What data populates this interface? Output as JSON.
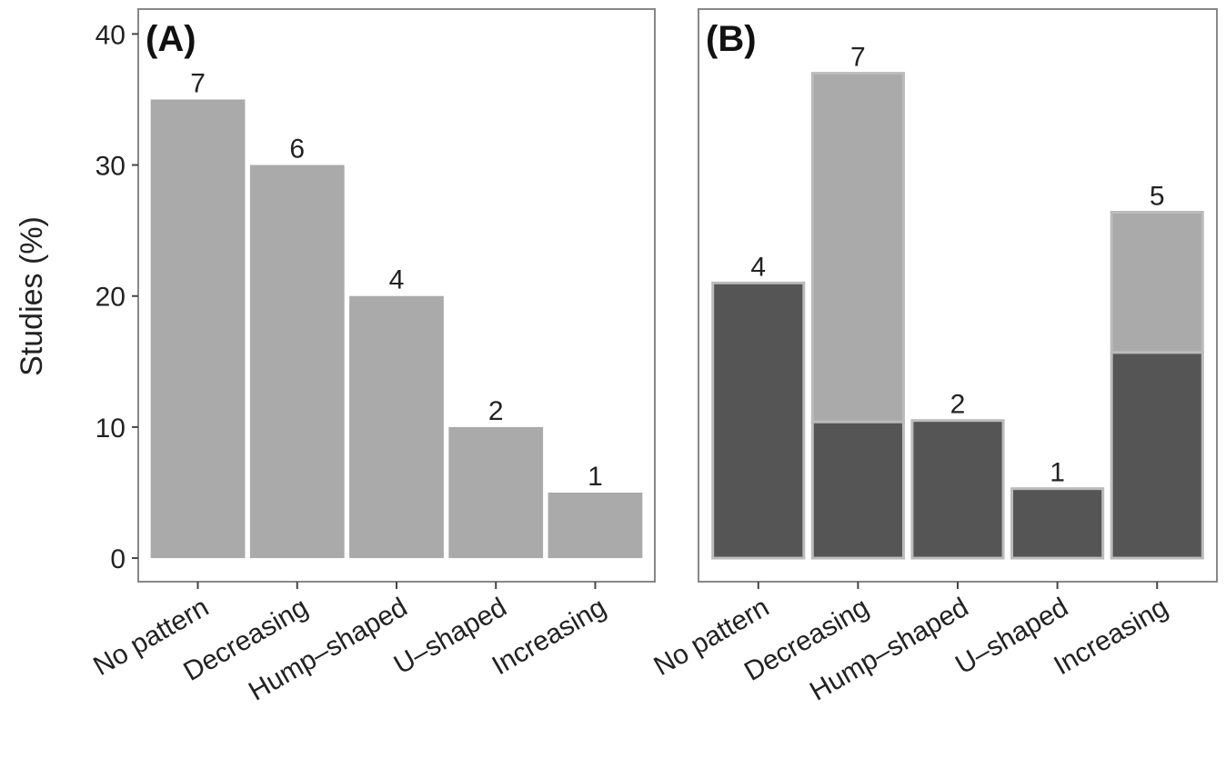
{
  "chart_data": [
    {
      "type": "bar",
      "panel_label": "(A)",
      "y_label": "Studies (%)",
      "categories": [
        "No pattern",
        "Decreasing",
        "Hump–shaped",
        "U–shaped",
        "Increasing"
      ],
      "values": [
        35,
        30,
        20,
        10,
        5
      ],
      "bar_labels": [
        7,
        6,
        4,
        2,
        1
      ],
      "color": "#aaaaaa",
      "ylim": [
        -1.8,
        41.9
      ],
      "yticks": [
        0,
        10,
        20,
        30,
        40
      ]
    },
    {
      "type": "stacked_bar",
      "panel_label": "(B)",
      "categories": [
        "No pattern",
        "Decreasing",
        "Hump–shaped",
        "U–shaped",
        "Increasing"
      ],
      "series": [
        {
          "color": "#555555",
          "values": [
            21,
            10.4,
            10.5,
            5.3,
            15.7
          ]
        },
        {
          "color": "#aaaaaa",
          "values": [
            0,
            26.6,
            0,
            0,
            10.7
          ]
        }
      ],
      "bar_labels": [
        4,
        7,
        2,
        1,
        5
      ],
      "ylim": [
        -1.8,
        41.9
      ]
    }
  ]
}
